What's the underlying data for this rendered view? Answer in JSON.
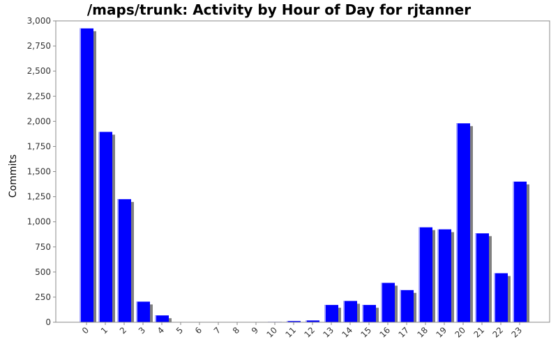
{
  "chart_data": {
    "type": "bar",
    "title": "/maps/trunk: Activity by Hour of Day for rjtanner",
    "xlabel": "",
    "ylabel": "Commits",
    "categories": [
      "0",
      "1",
      "2",
      "3",
      "4",
      "5",
      "6",
      "7",
      "8",
      "9",
      "10",
      "11",
      "12",
      "13",
      "14",
      "15",
      "16",
      "17",
      "18",
      "19",
      "20",
      "21",
      "22",
      "23"
    ],
    "values": [
      2925,
      1895,
      1225,
      205,
      68,
      3,
      2,
      1,
      1,
      2,
      4,
      12,
      18,
      172,
      212,
      172,
      392,
      320,
      945,
      925,
      1980,
      885,
      488,
      1400
    ],
    "ylim": [
      0,
      3000
    ],
    "yticks": [
      0,
      250,
      500,
      750,
      1000,
      1250,
      1500,
      1750,
      2000,
      2250,
      2500,
      2750,
      3000
    ],
    "ytick_labels": [
      "0",
      "250",
      "500",
      "750",
      "1,000",
      "1,250",
      "1,500",
      "1,750",
      "2,000",
      "2,250",
      "2,500",
      "2,750",
      "3,000"
    ],
    "grid": false,
    "legend": "none",
    "colors": {
      "bar": "#0000ff",
      "bar_highlight": "#aaaaff",
      "shadow": "#808080",
      "axis": "#888888",
      "text": "#333333"
    }
  }
}
